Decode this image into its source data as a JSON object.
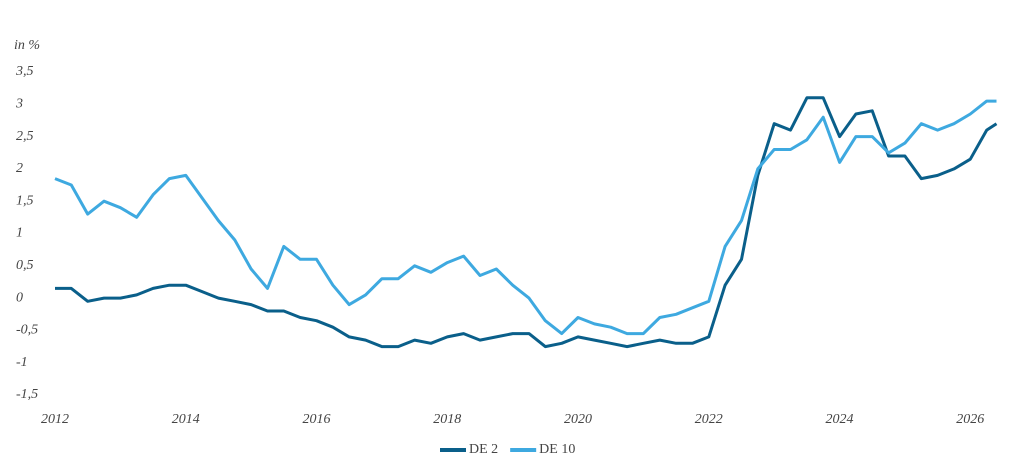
{
  "chart_data": {
    "type": "line",
    "y_axis_label": "in %",
    "x": [
      2012.0,
      2012.25,
      2012.5,
      2012.75,
      2013.0,
      2013.25,
      2013.5,
      2013.75,
      2014.0,
      2014.25,
      2014.5,
      2014.75,
      2015.0,
      2015.25,
      2015.5,
      2015.75,
      2016.0,
      2016.25,
      2016.5,
      2016.75,
      2017.0,
      2017.25,
      2017.5,
      2017.75,
      2018.0,
      2018.25,
      2018.5,
      2018.75,
      2019.0,
      2019.25,
      2019.5,
      2019.75,
      2020.0,
      2020.25,
      2020.5,
      2020.75,
      2021.0,
      2021.25,
      2021.5,
      2021.75,
      2022.0,
      2022.25,
      2022.5,
      2022.75,
      2023.0,
      2023.25,
      2023.5,
      2023.75,
      2024.0,
      2024.25,
      2024.5,
      2024.75,
      2025.0,
      2025.25,
      2025.5,
      2025.75,
      2026.0,
      2026.25,
      2026.4
    ],
    "series": [
      {
        "name": "DE 2",
        "color": "#0a5f8a",
        "values": [
          0.15,
          0.15,
          -0.05,
          0.0,
          0.0,
          0.05,
          0.15,
          0.2,
          0.2,
          0.1,
          0.0,
          -0.05,
          -0.1,
          -0.2,
          -0.2,
          -0.3,
          -0.35,
          -0.45,
          -0.6,
          -0.65,
          -0.75,
          -0.75,
          -0.65,
          -0.7,
          -0.6,
          -0.55,
          -0.65,
          -0.6,
          -0.55,
          -0.55,
          -0.75,
          -0.7,
          -0.6,
          -0.65,
          -0.7,
          -0.75,
          -0.7,
          -0.65,
          -0.7,
          -0.7,
          -0.6,
          0.2,
          0.6,
          1.9,
          2.7,
          2.6,
          3.1,
          3.1,
          2.5,
          2.85,
          2.9,
          2.2,
          2.2,
          1.85,
          1.9,
          2.0,
          2.15,
          2.6,
          2.7
        ]
      },
      {
        "name": "DE 10",
        "color": "#3ea9e0",
        "values": [
          1.85,
          1.75,
          1.3,
          1.5,
          1.4,
          1.25,
          1.6,
          1.85,
          1.9,
          1.55,
          1.2,
          0.9,
          0.45,
          0.15,
          0.8,
          0.6,
          0.6,
          0.2,
          -0.1,
          0.05,
          0.3,
          0.3,
          0.5,
          0.4,
          0.55,
          0.65,
          0.35,
          0.45,
          0.2,
          0.0,
          -0.35,
          -0.55,
          -0.3,
          -0.4,
          -0.45,
          -0.55,
          -0.55,
          -0.3,
          -0.25,
          -0.15,
          -0.05,
          0.8,
          1.2,
          2.0,
          2.3,
          2.3,
          2.45,
          2.8,
          2.1,
          2.5,
          2.5,
          2.25,
          2.4,
          2.7,
          2.6,
          2.7,
          2.85,
          3.05,
          3.05
        ]
      }
    ],
    "xlim": [
      2012,
      2026.5
    ],
    "xticks": [
      2012,
      2014,
      2016,
      2018,
      2020,
      2022,
      2024,
      2026
    ],
    "ylim": [
      -1.5,
      3.5
    ],
    "yticks": [
      {
        "value": 3.5,
        "label": "3,5"
      },
      3,
      {
        "value": 2.5,
        "label": "2,5"
      },
      2,
      {
        "value": 1.5,
        "label": "1,5"
      },
      1,
      {
        "value": 0.5,
        "label": "0,5"
      },
      0,
      {
        "value": -0.5,
        "label": "-0,5"
      },
      -1,
      {
        "value": -1.5,
        "label": "-1,5"
      }
    ],
    "legend": "bottom"
  }
}
